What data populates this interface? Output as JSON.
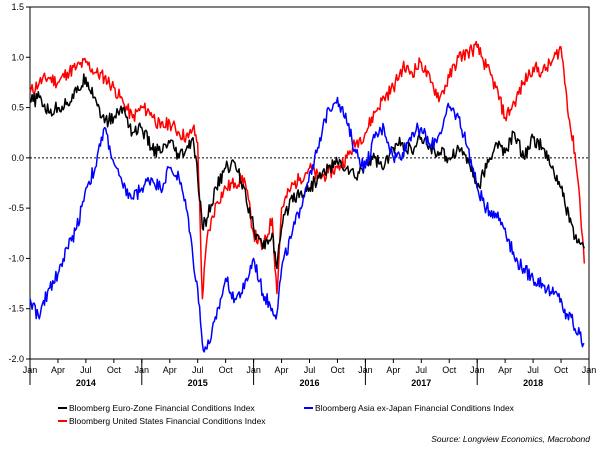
{
  "chart_data": {
    "type": "line",
    "title": "",
    "xlabel": "",
    "ylabel": "",
    "ylim": [
      -2.0,
      1.5
    ],
    "yticks": [
      "1.5",
      "1.0",
      "0.5",
      "0.0",
      "-0.5",
      "-1.0",
      "-1.5",
      "-2.0"
    ],
    "ytick_values": [
      1.5,
      1.0,
      0.5,
      0.0,
      -0.5,
      -1.0,
      -1.5,
      -2.0
    ],
    "xlim": [
      0,
      60
    ],
    "month_ticks": [
      "Jan",
      "Apr",
      "Jul",
      "Oct",
      "Jan",
      "Apr",
      "Jul",
      "Oct",
      "Jan",
      "Apr",
      "Jul",
      "Oct",
      "Jan",
      "Apr",
      "Jul",
      "Oct",
      "Jan",
      "Apr",
      "Jul",
      "Oct",
      "Jan"
    ],
    "years": [
      {
        "label": "2014",
        "center": 6
      },
      {
        "label": "2015",
        "center": 18
      },
      {
        "label": "2016",
        "center": 30
      },
      {
        "label": "2017",
        "center": 42
      },
      {
        "label": "2018",
        "center": 54
      }
    ],
    "zero_line": {
      "value": 0.0,
      "style": "dotted"
    },
    "series": [
      {
        "name": "Bloomberg United States Financial Conditions Index",
        "color": "#ff0000",
        "x": [
          0,
          1,
          2,
          3,
          4,
          5,
          6,
          7,
          8,
          9,
          10,
          11,
          12,
          13,
          14,
          15,
          16,
          17,
          17.5,
          18,
          18.5,
          19,
          20,
          21,
          22,
          23,
          24,
          25,
          26,
          26.5,
          27,
          28,
          29,
          30,
          31,
          32,
          33,
          34,
          35,
          36,
          37,
          38,
          39,
          40,
          41,
          42,
          43,
          44,
          45,
          46,
          47,
          48,
          49,
          50,
          51,
          52,
          53,
          54,
          55,
          56,
          57,
          57.5,
          58,
          58.5,
          59,
          59.5
        ],
        "values": [
          0.65,
          0.75,
          0.8,
          0.75,
          0.85,
          0.9,
          0.95,
          0.85,
          0.8,
          0.7,
          0.55,
          0.4,
          0.5,
          0.45,
          0.3,
          0.35,
          0.25,
          0.2,
          0.3,
          0.15,
          -1.4,
          -0.8,
          -0.45,
          -0.3,
          -0.25,
          -0.2,
          -0.75,
          -0.9,
          -0.6,
          -1.35,
          -0.5,
          -0.3,
          -0.2,
          -0.1,
          -0.2,
          -0.15,
          -0.1,
          0.0,
          0.15,
          0.25,
          0.45,
          0.6,
          0.7,
          0.9,
          0.85,
          0.95,
          0.75,
          0.6,
          0.8,
          1.0,
          1.05,
          1.1,
          0.9,
          0.7,
          0.4,
          0.55,
          0.75,
          0.9,
          0.85,
          0.95,
          1.1,
          0.7,
          0.3,
          0.05,
          -0.4,
          -1.05
        ]
      },
      {
        "name": "Bloomberg Euro-Zone Financial Conditions Index",
        "color": "#000000",
        "x": [
          0,
          1,
          2,
          3,
          4,
          5,
          6,
          7,
          8,
          9,
          10,
          11,
          12,
          13,
          14,
          15,
          16,
          17,
          17.5,
          18,
          18.5,
          19,
          20,
          21,
          22,
          23,
          24,
          25,
          26,
          26.5,
          27,
          28,
          29,
          30,
          31,
          32,
          33,
          34,
          35,
          36,
          37,
          38,
          39,
          40,
          41,
          42,
          43,
          44,
          45,
          46,
          47,
          48,
          49,
          50,
          51,
          52,
          53,
          54,
          55,
          56,
          57,
          57.5,
          58,
          58.5,
          59,
          59.5
        ],
        "values": [
          0.55,
          0.6,
          0.45,
          0.5,
          0.55,
          0.65,
          0.8,
          0.6,
          0.35,
          0.4,
          0.5,
          0.25,
          0.3,
          0.1,
          0.05,
          0.15,
          0.0,
          0.1,
          0.2,
          -0.2,
          -0.7,
          -0.6,
          -0.3,
          -0.1,
          -0.05,
          -0.3,
          -0.7,
          -0.9,
          -0.75,
          -1.1,
          -0.7,
          -0.4,
          -0.35,
          -0.3,
          -0.2,
          -0.1,
          -0.05,
          -0.1,
          -0.2,
          -0.05,
          0.0,
          -0.1,
          0.1,
          0.15,
          0.05,
          0.2,
          0.1,
          0.05,
          0.0,
          0.1,
          0.0,
          -0.3,
          -0.1,
          0.15,
          0.05,
          0.25,
          0.0,
          0.2,
          0.1,
          -0.1,
          -0.3,
          -0.5,
          -0.6,
          -0.8,
          -0.85,
          -0.9
        ]
      },
      {
        "name": "Bloomberg Asia ex-Japan Financial Conditions Index",
        "color": "#0000ff",
        "x": [
          0,
          1,
          2,
          3,
          4,
          5,
          6,
          7,
          8,
          9,
          10,
          11,
          12,
          13,
          14,
          15,
          16,
          17,
          17.5,
          18,
          18.5,
          19,
          20,
          21,
          22,
          23,
          24,
          25,
          26,
          26.5,
          27,
          28,
          29,
          30,
          31,
          32,
          33,
          34,
          35,
          36,
          37,
          38,
          39,
          40,
          41,
          42,
          43,
          44,
          45,
          46,
          47,
          48,
          49,
          50,
          51,
          52,
          53,
          54,
          55,
          56,
          57,
          57.5,
          58,
          58.5,
          59,
          59.5
        ],
        "values": [
          -1.4,
          -1.6,
          -1.3,
          -1.15,
          -0.9,
          -0.7,
          -0.3,
          -0.1,
          0.3,
          -0.05,
          -0.3,
          -0.4,
          -0.3,
          -0.2,
          -0.3,
          -0.1,
          -0.2,
          -0.6,
          -1.0,
          -1.3,
          -1.85,
          -1.9,
          -1.6,
          -1.2,
          -1.4,
          -1.3,
          -1.0,
          -1.35,
          -1.5,
          -1.55,
          -1.1,
          -0.8,
          -0.5,
          -0.15,
          0.1,
          0.5,
          0.6,
          0.35,
          0.05,
          -0.1,
          0.2,
          0.3,
          0.0,
          0.05,
          0.25,
          0.3,
          0.1,
          0.25,
          0.5,
          0.4,
          0.1,
          -0.3,
          -0.5,
          -0.55,
          -0.7,
          -1.0,
          -1.1,
          -1.2,
          -1.25,
          -1.35,
          -1.4,
          -1.6,
          -1.55,
          -1.7,
          -1.75,
          -1.85
        ]
      }
    ],
    "legend": [
      {
        "label": "Bloomberg Euro-Zone Financial Conditions Index",
        "color": "#000000"
      },
      {
        "label": "Bloomberg Asia ex-Japan Financial Conditions Index",
        "color": "#0000ff"
      },
      {
        "label": "Bloomberg United States Financial Conditions Index",
        "color": "#ff0000"
      }
    ],
    "source": "Source: Longview Economics, Macrobond"
  }
}
